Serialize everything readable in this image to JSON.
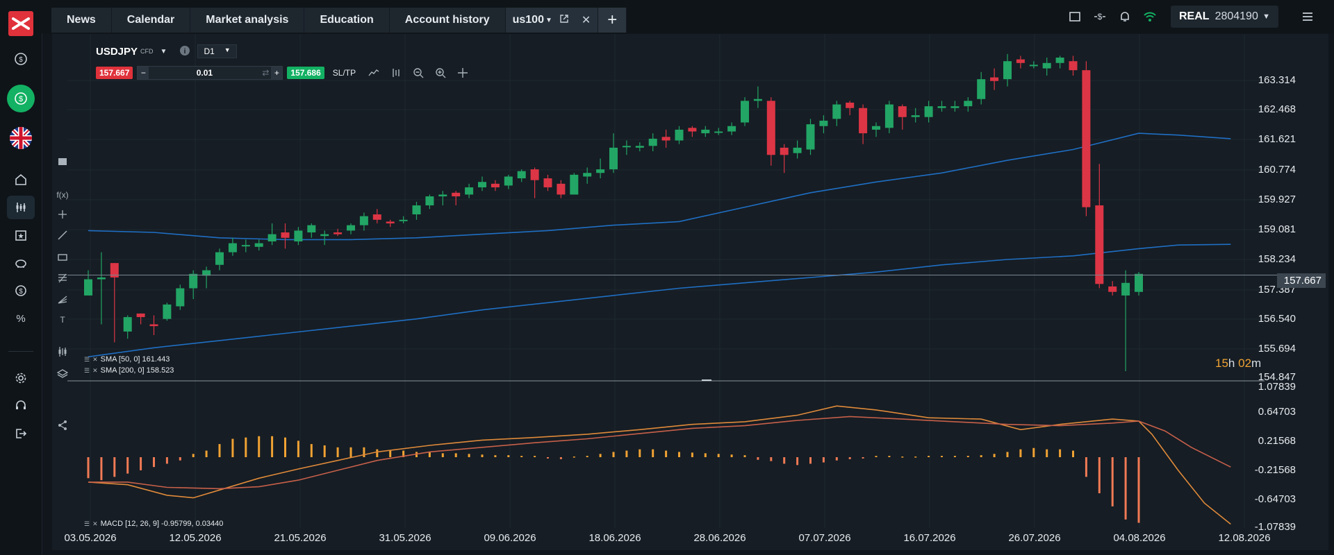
{
  "nav_tabs": [
    "News",
    "Calendar",
    "Market analysis",
    "Education",
    "Account history"
  ],
  "symbol_tab": {
    "label": "us100"
  },
  "account": {
    "type": "REAL",
    "number": "2804190"
  },
  "instrument": {
    "symbol": "USDJPY",
    "type": "CFD",
    "timeframe": "D1",
    "sell_price": "157.667",
    "buy_price": "157.686",
    "volume": "0.01",
    "sltp_label": "SL/TP"
  },
  "price_axis": [
    "163.314",
    "162.468",
    "161.621",
    "160.774",
    "159.927",
    "159.081",
    "158.234",
    "157.387",
    "156.540",
    "155.694",
    "154.847"
  ],
  "current_price": "157.667",
  "countdown": {
    "h": "15",
    "h_unit": "h",
    "m": "02",
    "m_unit": "m"
  },
  "sma_legend": [
    {
      "label": "SMA [50, 0] 161.443"
    },
    {
      "label": "SMA [200, 0] 158.523"
    }
  ],
  "macd_axis": [
    "1.07839",
    "0.64703",
    "0.21568",
    "-0.21568",
    "-0.64703",
    "-1.07839"
  ],
  "macd_legend": "MACD [12, 26, 9] -0.95799, 0.03440",
  "date_axis": [
    "03.05.2026",
    "12.05.2026",
    "21.05.2026",
    "31.05.2026",
    "09.06.2026",
    "18.06.2026",
    "28.06.2026",
    "07.07.2026",
    "16.07.2026",
    "26.07.2026",
    "04.08.2026",
    "12.08.2026"
  ],
  "colors": {
    "bull": "#22a565",
    "bear": "#dc3545",
    "sma": "#1f6fc4",
    "macd_hist": "#f0a233",
    "macd_neg": "#f07a55",
    "brand": "#e0323b"
  },
  "chart_data": {
    "type": "candlestick",
    "ylim": [
      154.847,
      163.7
    ],
    "candles": [
      [
        157.1,
        157.55,
        157.1,
        157.8
      ],
      [
        157.55,
        157.6,
        156.3,
        158.3
      ],
      [
        158.0,
        157.6,
        155.8,
        158.0
      ],
      [
        156.1,
        156.5,
        155.9,
        156.55
      ],
      [
        156.6,
        156.5,
        156.3,
        156.6
      ],
      [
        156.3,
        156.25,
        156.0,
        156.55
      ],
      [
        156.45,
        156.85,
        156.4,
        156.9
      ],
      [
        156.8,
        157.3,
        156.7,
        157.4
      ],
      [
        157.3,
        157.7,
        157.0,
        157.8
      ],
      [
        157.65,
        157.8,
        157.3,
        157.9
      ],
      [
        157.95,
        158.3,
        157.8,
        158.4
      ],
      [
        158.3,
        158.55,
        158.2,
        158.7
      ],
      [
        158.5,
        158.5,
        158.3,
        158.65
      ],
      [
        158.45,
        158.55,
        158.35,
        158.65
      ],
      [
        158.6,
        158.8,
        158.5,
        159.1
      ],
      [
        158.85,
        158.7,
        158.4,
        159.1
      ],
      [
        158.6,
        158.9,
        158.5,
        159.0
      ],
      [
        158.85,
        159.05,
        158.7,
        159.1
      ],
      [
        158.75,
        158.8,
        158.5,
        158.9
      ],
      [
        158.85,
        158.8,
        158.75,
        158.95
      ],
      [
        158.9,
        159.05,
        158.8,
        159.1
      ],
      [
        159.05,
        159.3,
        158.9,
        159.4
      ],
      [
        159.35,
        159.2,
        159.1,
        159.5
      ],
      [
        159.15,
        159.1,
        159.0,
        159.2
      ],
      [
        159.2,
        159.2,
        159.1,
        159.3
      ],
      [
        159.35,
        159.6,
        159.2,
        159.7
      ],
      [
        159.6,
        159.85,
        159.5,
        159.9
      ],
      [
        159.85,
        159.9,
        159.6,
        160.0
      ],
      [
        159.95,
        159.85,
        159.6,
        160.0
      ],
      [
        159.9,
        160.1,
        159.8,
        160.2
      ],
      [
        160.1,
        160.25,
        160.0,
        160.4
      ],
      [
        160.2,
        160.1,
        160.0,
        160.3
      ],
      [
        160.15,
        160.4,
        160.05,
        160.45
      ],
      [
        160.35,
        160.55,
        160.25,
        160.6
      ],
      [
        160.6,
        160.3,
        159.8,
        160.65
      ],
      [
        160.35,
        160.1,
        160.0,
        160.45
      ],
      [
        160.2,
        159.9,
        159.8,
        160.3
      ],
      [
        159.9,
        160.45,
        159.9,
        160.5
      ],
      [
        160.4,
        160.5,
        160.2,
        160.65
      ],
      [
        160.5,
        160.6,
        160.35,
        160.9
      ],
      [
        160.6,
        161.2,
        160.5,
        161.6
      ],
      [
        161.25,
        161.25,
        161.0,
        161.4
      ],
      [
        161.2,
        161.25,
        161.1,
        161.35
      ],
      [
        161.25,
        161.45,
        161.1,
        161.6
      ],
      [
        161.5,
        161.4,
        161.2,
        161.7
      ],
      [
        161.4,
        161.7,
        161.3,
        161.8
      ],
      [
        161.75,
        161.65,
        161.5,
        161.8
      ],
      [
        161.6,
        161.7,
        161.5,
        161.8
      ],
      [
        161.65,
        161.65,
        161.55,
        161.75
      ],
      [
        161.65,
        161.8,
        161.55,
        161.9
      ],
      [
        161.9,
        162.5,
        161.8,
        162.6
      ],
      [
        162.5,
        162.55,
        162.3,
        162.9
      ],
      [
        162.5,
        161.0,
        160.7,
        162.6
      ],
      [
        161.2,
        161.0,
        160.5,
        161.3
      ],
      [
        161.05,
        161.2,
        160.9,
        161.4
      ],
      [
        161.15,
        161.85,
        161.0,
        162.0
      ],
      [
        161.8,
        161.95,
        161.6,
        162.1
      ],
      [
        162.0,
        162.4,
        161.8,
        162.5
      ],
      [
        162.45,
        162.3,
        162.1,
        162.5
      ],
      [
        162.3,
        161.6,
        161.3,
        162.4
      ],
      [
        161.7,
        161.8,
        161.5,
        161.9
      ],
      [
        161.75,
        162.4,
        161.6,
        162.5
      ],
      [
        162.35,
        162.05,
        161.7,
        162.4
      ],
      [
        162.05,
        162.1,
        161.9,
        162.3
      ],
      [
        162.05,
        162.35,
        161.9,
        162.5
      ],
      [
        162.3,
        162.35,
        162.2,
        162.5
      ],
      [
        162.3,
        162.35,
        162.2,
        162.5
      ],
      [
        162.35,
        162.5,
        162.2,
        162.6
      ],
      [
        162.55,
        163.1,
        162.4,
        163.3
      ],
      [
        163.15,
        163.05,
        162.8,
        163.4
      ],
      [
        163.1,
        163.6,
        162.9,
        163.8
      ],
      [
        163.65,
        163.55,
        163.4,
        163.75
      ],
      [
        163.5,
        163.5,
        163.4,
        163.6
      ],
      [
        163.4,
        163.55,
        163.2,
        163.7
      ],
      [
        163.55,
        163.7,
        163.4,
        163.75
      ],
      [
        163.6,
        163.35,
        163.2,
        163.75
      ],
      [
        163.35,
        159.55,
        159.3,
        163.6
      ],
      [
        159.6,
        157.42,
        157.3,
        160.75
      ],
      [
        157.35,
        157.2,
        157.1,
        157.5
      ],
      [
        157.1,
        157.45,
        155.0,
        157.8
      ],
      [
        157.2,
        157.7,
        157.1,
        157.75
      ]
    ],
    "sma50": [
      [
        0,
        158.9
      ],
      [
        5,
        158.85
      ],
      [
        10,
        158.7
      ],
      [
        15,
        158.65
      ],
      [
        20,
        158.65
      ],
      [
        25,
        158.7
      ],
      [
        30,
        158.8
      ],
      [
        35,
        158.9
      ],
      [
        40,
        159.05
      ],
      [
        45,
        159.15
      ],
      [
        50,
        159.55
      ],
      [
        55,
        159.95
      ],
      [
        60,
        160.25
      ],
      [
        65,
        160.5
      ],
      [
        70,
        160.85
      ],
      [
        75,
        161.15
      ],
      [
        80,
        161.6
      ],
      [
        83,
        161.55
      ],
      [
        87,
        161.45
      ]
    ],
    "sma200": [
      [
        0,
        155.4
      ],
      [
        5,
        155.65
      ],
      [
        10,
        155.85
      ],
      [
        15,
        156.05
      ],
      [
        20,
        156.25
      ],
      [
        25,
        156.45
      ],
      [
        30,
        156.7
      ],
      [
        35,
        156.9
      ],
      [
        40,
        157.1
      ],
      [
        45,
        157.3
      ],
      [
        50,
        157.45
      ],
      [
        55,
        157.6
      ],
      [
        60,
        157.75
      ],
      [
        65,
        157.95
      ],
      [
        70,
        158.1
      ],
      [
        75,
        158.2
      ],
      [
        80,
        158.4
      ],
      [
        83,
        158.5
      ],
      [
        87,
        158.52
      ]
    ],
    "macd_ylim": [
      -1.07839,
      1.07839
    ],
    "macd_hist": [
      -0.32,
      -0.35,
      -0.3,
      -0.25,
      -0.2,
      -0.15,
      -0.1,
      -0.05,
      0.05,
      0.1,
      0.2,
      0.28,
      0.3,
      0.32,
      0.32,
      0.3,
      0.25,
      0.2,
      0.18,
      0.15,
      0.15,
      0.15,
      0.12,
      0.1,
      0.1,
      0.08,
      0.08,
      0.06,
      0.06,
      0.05,
      0.04,
      0.03,
      0.03,
      0.02,
      0.02,
      -0.02,
      -0.03,
      0.01,
      0.02,
      0.05,
      0.08,
      0.1,
      0.12,
      0.12,
      0.1,
      0.08,
      0.07,
      0.06,
      0.05,
      0.04,
      0.03,
      -0.04,
      -0.06,
      -0.1,
      -0.12,
      -0.1,
      -0.08,
      -0.05,
      -0.03,
      -0.02,
      0.02,
      0.02,
      0.01,
      0.01,
      0.02,
      0.02,
      0.02,
      0.02,
      0.03,
      0.05,
      0.08,
      0.12,
      0.14,
      0.12,
      0.12,
      0.1,
      -0.3,
      -0.55,
      -0.75,
      -0.95,
      -1.0
    ],
    "macd_line": [
      [
        0,
        -0.38
      ],
      [
        3,
        -0.42
      ],
      [
        6,
        -0.58
      ],
      [
        8,
        -0.62
      ],
      [
        10,
        -0.5
      ],
      [
        13,
        -0.32
      ],
      [
        16,
        -0.18
      ],
      [
        19,
        -0.05
      ],
      [
        22,
        0.08
      ],
      [
        26,
        0.18
      ],
      [
        30,
        0.26
      ],
      [
        34,
        0.3
      ],
      [
        38,
        0.35
      ],
      [
        42,
        0.42
      ],
      [
        46,
        0.5
      ],
      [
        50,
        0.54
      ],
      [
        54,
        0.64
      ],
      [
        57,
        0.78
      ],
      [
        60,
        0.72
      ],
      [
        64,
        0.6
      ],
      [
        68,
        0.58
      ],
      [
        71,
        0.42
      ],
      [
        74,
        0.5
      ],
      [
        78,
        0.58
      ],
      [
        80,
        0.55
      ],
      [
        81,
        0.35
      ],
      [
        83,
        -0.2
      ],
      [
        85,
        -0.7
      ],
      [
        87,
        -1.02
      ]
    ],
    "signal_line": [
      [
        0,
        -0.38
      ],
      [
        3,
        -0.38
      ],
      [
        6,
        -0.46
      ],
      [
        10,
        -0.48
      ],
      [
        13,
        -0.45
      ],
      [
        16,
        -0.35
      ],
      [
        19,
        -0.2
      ],
      [
        22,
        -0.05
      ],
      [
        26,
        0.08
      ],
      [
        30,
        0.15
      ],
      [
        34,
        0.22
      ],
      [
        38,
        0.28
      ],
      [
        42,
        0.36
      ],
      [
        46,
        0.44
      ],
      [
        50,
        0.48
      ],
      [
        54,
        0.56
      ],
      [
        58,
        0.62
      ],
      [
        62,
        0.58
      ],
      [
        66,
        0.54
      ],
      [
        70,
        0.5
      ],
      [
        74,
        0.48
      ],
      [
        78,
        0.52
      ],
      [
        80,
        0.55
      ],
      [
        82,
        0.4
      ],
      [
        84,
        0.15
      ],
      [
        87,
        -0.15
      ]
    ]
  }
}
